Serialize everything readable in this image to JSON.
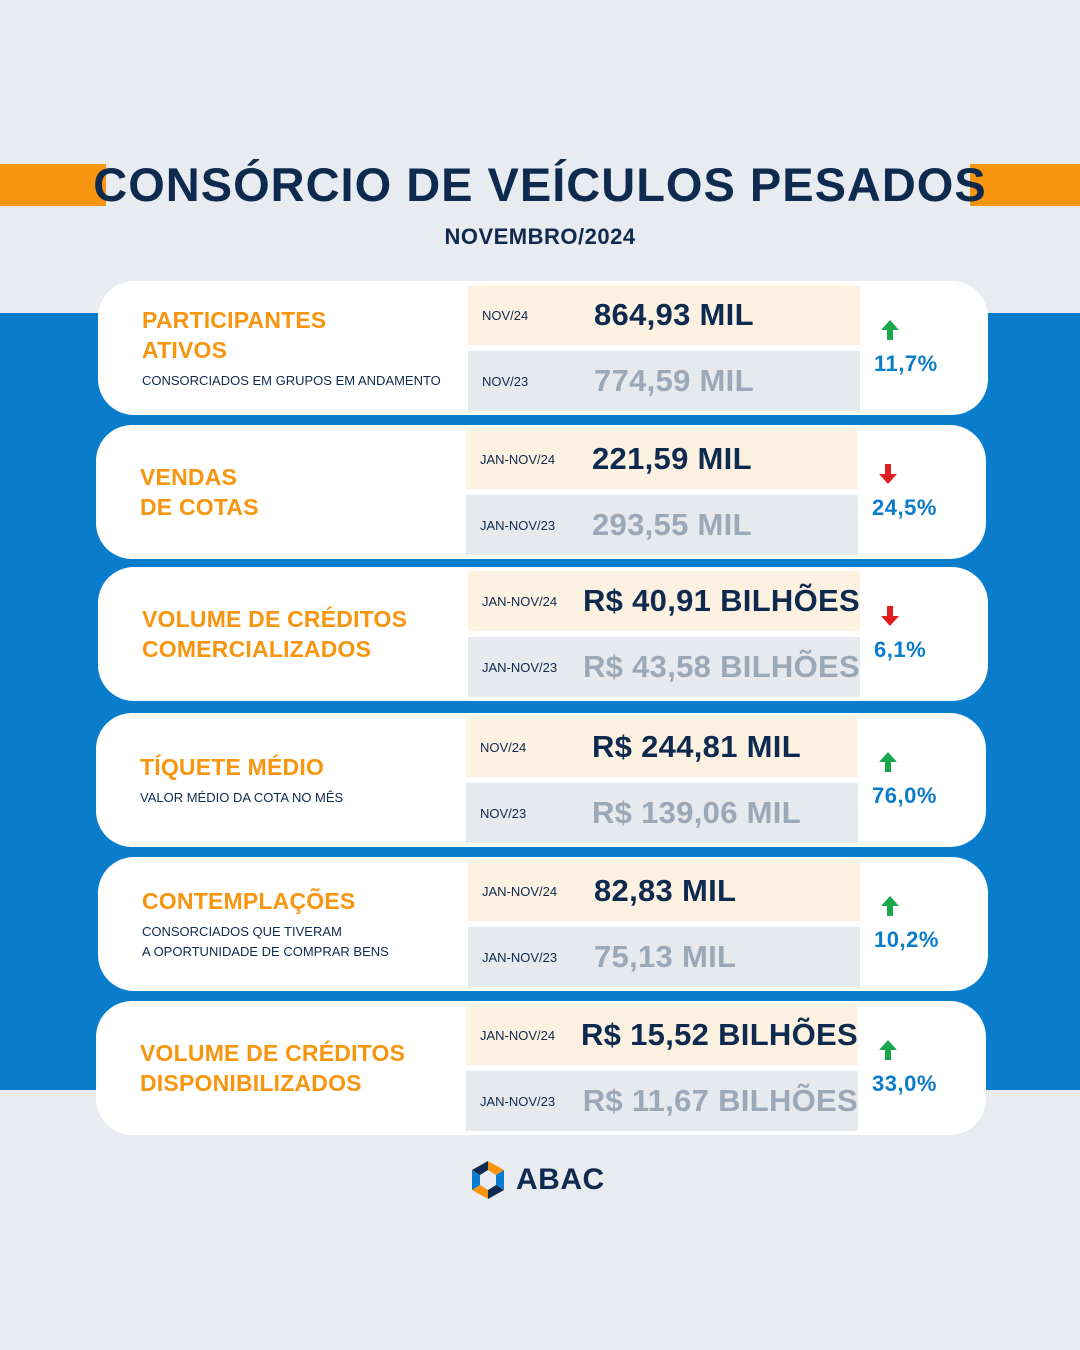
{
  "header": {
    "title": "CONSÓRCIO DE VEÍCULOS PESADOS",
    "subtitle": "NOVEMBRO/2024"
  },
  "colors": {
    "orange_accent": "#f7950f",
    "navy": "#0f2a4f",
    "blue_band": "#0a7ccc",
    "arrow_up": "#1aa84b",
    "arrow_down": "#e02020"
  },
  "cards": [
    {
      "title": "PARTICIPANTES\nATIVOS",
      "subtitle": "CONSORCIADOS EM GRUPOS EM ANDAMENTO",
      "current_period": "NOV/24",
      "current_value": "864,93 MIL",
      "previous_period": "NOV/23",
      "previous_value": "774,59 MIL",
      "direction": "up",
      "arrow_icon": "arrow-up-icon",
      "change": "11,7%"
    },
    {
      "title": "VENDAS\nDE COTAS",
      "subtitle": "",
      "current_period": "JAN-NOV/24",
      "current_value": "221,59 MIL",
      "previous_period": "JAN-NOV/23",
      "previous_value": "293,55 MIL",
      "direction": "down",
      "arrow_icon": "arrow-down-icon",
      "change": "24,5%"
    },
    {
      "title": "VOLUME DE CRÉDITOS\nCOMERCIALIZADOS",
      "subtitle": "",
      "current_period": "JAN-NOV/24",
      "current_value": "R$ 40,91 BILHÕES",
      "previous_period": "JAN-NOV/23",
      "previous_value": "R$ 43,58 BILHÕES",
      "direction": "down",
      "arrow_icon": "arrow-down-icon",
      "change": "6,1%"
    },
    {
      "title": "TÍQUETE MÉDIO",
      "subtitle": "VALOR MÉDIO DA COTA NO MÊS",
      "current_period": "NOV/24",
      "current_value": "R$ 244,81 MIL",
      "previous_period": "NOV/23",
      "previous_value": "R$ 139,06 MIL",
      "direction": "up",
      "arrow_icon": "arrow-up-icon",
      "change": "76,0%"
    },
    {
      "title": "CONTEMPLAÇÕES",
      "subtitle": "CONSORCIADOS QUE TIVERAM\nA OPORTUNIDADE DE COMPRAR BENS",
      "current_period": "JAN-NOV/24",
      "current_value": "82,83 MIL",
      "previous_period": "JAN-NOV/23",
      "previous_value": "75,13 MIL",
      "direction": "up",
      "arrow_icon": "arrow-up-icon",
      "change": "10,2%"
    },
    {
      "title": "VOLUME DE CRÉDITOS\nDISPONIBILIZADOS",
      "subtitle": "",
      "current_period": "JAN-NOV/24",
      "current_value": "R$ 15,52 BILHÕES",
      "previous_period": "JAN-NOV/23",
      "previous_value": "R$ 11,67 BILHÕES",
      "direction": "up",
      "arrow_icon": "arrow-up-icon",
      "change": "33,0%"
    }
  ],
  "footer": {
    "logo_icon": "abac-logo-icon",
    "logo_text": "ABAC"
  }
}
